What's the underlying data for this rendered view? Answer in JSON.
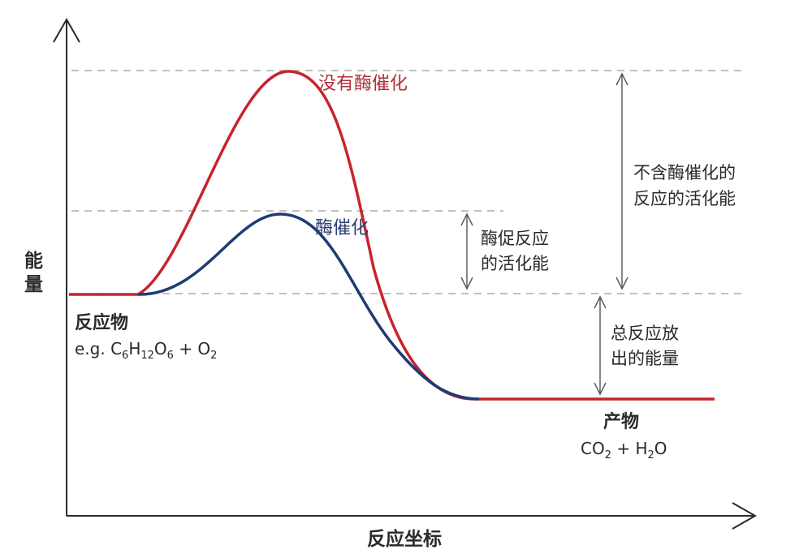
{
  "axes": {
    "y_label_line1": "能",
    "y_label_line2": "量",
    "x_label": "反应坐标"
  },
  "curves": {
    "uncatalyzed": {
      "label": "没有酶催化",
      "color": "#c8232c"
    },
    "catalyzed": {
      "label": "酶催化",
      "color": "#1f3b73"
    }
  },
  "reactants": {
    "label": "反应物",
    "formula": {
      "prefix": "e.g. C",
      "s1": "6",
      "t1": "H",
      "s2": "12",
      "t2": "O",
      "s3": "6",
      "t3": " + O",
      "s4": "2"
    }
  },
  "products": {
    "label": "产物",
    "formula": {
      "t0": "CO",
      "s1": "2",
      "t1": " + H",
      "s2": "2",
      "t2": "O"
    }
  },
  "annotations": {
    "enzyme_activation_line1": "酶促反应",
    "enzyme_activation_line2": "的活化能",
    "uncatalyzed_activation_line1": "不含酶催化的",
    "uncatalyzed_activation_line2": "反应的活化能",
    "released_line1": "总反应放",
    "released_line2": "出的能量"
  },
  "colors": {
    "axis": "#2a2a2a",
    "dashed": "#9a9a9a",
    "arrow": "#555555"
  }
}
